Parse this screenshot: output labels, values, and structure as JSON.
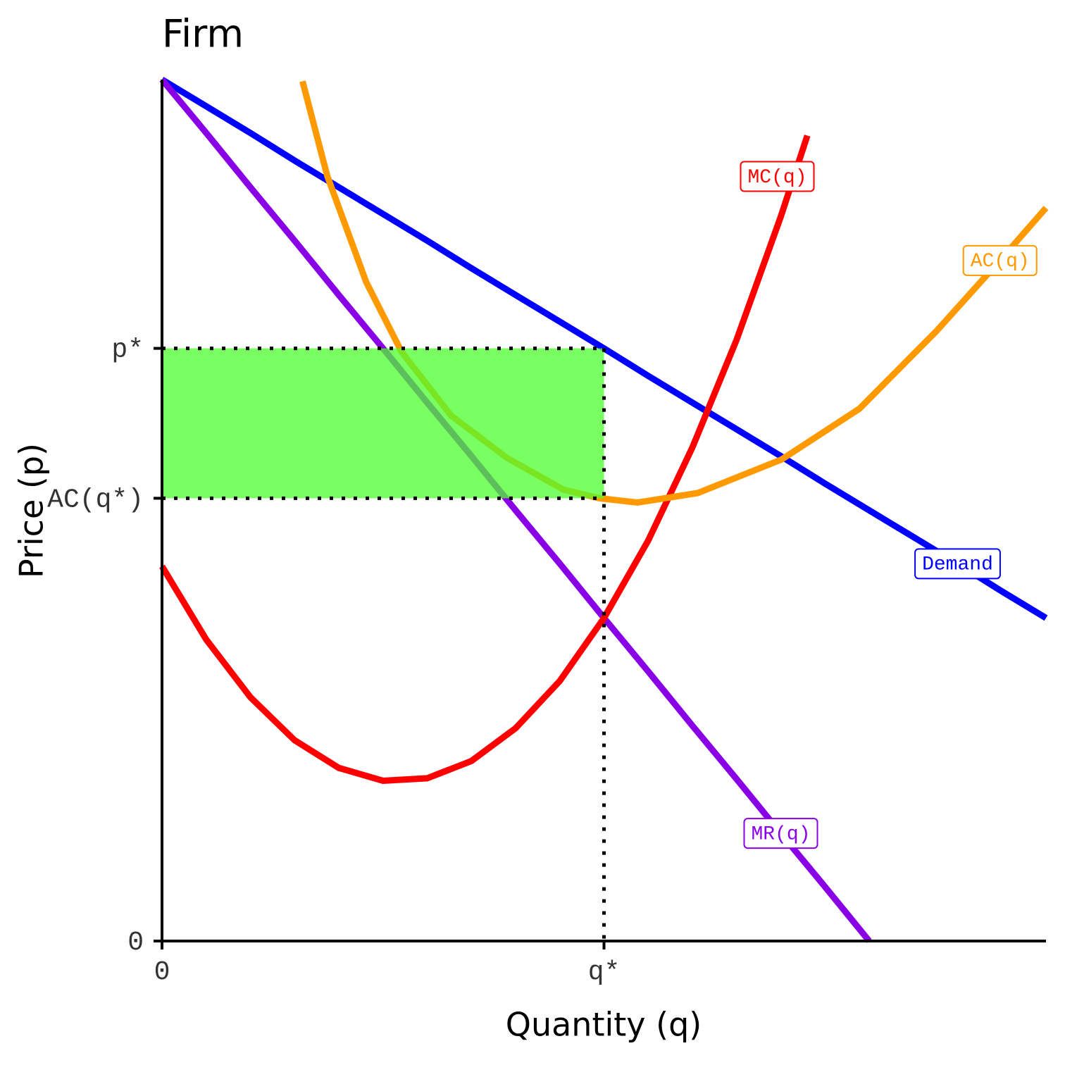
{
  "chart_data": {
    "type": "line",
    "title": "Firm",
    "x_label": "Quantity (q)",
    "y_label": "Price (p)",
    "xlim": [
      0,
      10
    ],
    "ylim": [
      0,
      10
    ],
    "xticks": [
      0,
      {
        "value": 5,
        "label": "q*"
      }
    ],
    "yticks": [
      0,
      {
        "value": 5.14,
        "label": "AC(q*)"
      },
      {
        "value": 6.88,
        "label": "p*"
      }
    ],
    "shade_color": "#4dff2e",
    "series": [
      {
        "name": "Demand",
        "color": "#0000ff",
        "x": [
          0,
          0.5,
          1,
          1.5,
          2,
          2.5,
          3,
          3.5,
          4,
          4.5,
          5,
          5.5,
          6,
          6.5,
          7,
          7.5,
          8,
          8.5,
          9,
          9.5,
          10
        ],
        "values": [
          10,
          9.69,
          9.38,
          9.06,
          8.75,
          8.44,
          8.13,
          7.81,
          7.5,
          7.19,
          6.88,
          6.56,
          6.25,
          5.94,
          5.63,
          5.31,
          5,
          4.69,
          4.38,
          4.06,
          3.75
        ]
      },
      {
        "name": "MR(q)",
        "color": "#8a00e6",
        "x": [
          0,
          0.5,
          1,
          1.5,
          2,
          2.5,
          3,
          3.5,
          4,
          4.5,
          5,
          5.5,
          6,
          6.5,
          7,
          7.5,
          8
        ],
        "values": [
          10,
          9.38,
          8.75,
          8.13,
          7.5,
          6.88,
          6.25,
          5.63,
          5,
          4.38,
          3.75,
          3.13,
          2.5,
          1.88,
          1.25,
          0.63,
          0
        ]
      },
      {
        "name": "MC(q)",
        "color": "#ff0000",
        "x": [
          0,
          0.5,
          1,
          1.5,
          2,
          2.5,
          3,
          3.5,
          4,
          4.5,
          5,
          5.5,
          6,
          6.5,
          7,
          7.3
        ],
        "values": [
          4.35,
          3.5,
          2.83,
          2.33,
          2.01,
          1.86,
          1.89,
          2.09,
          2.47,
          3.02,
          3.75,
          4.65,
          5.73,
          6.98,
          8.41,
          9.35
        ]
      },
      {
        "name": "AC(q)",
        "color": "#ff9900",
        "x": [
          1.59,
          1.87,
          2.31,
          2.71,
          3.27,
          3.9,
          4.54,
          4.95,
          5.38,
          6.06,
          7.01,
          7.89,
          8.76,
          9.48,
          10
        ],
        "values": [
          9.98,
          8.88,
          7.65,
          6.84,
          6.1,
          5.61,
          5.24,
          5.14,
          5.09,
          5.2,
          5.59,
          6.18,
          7.08,
          7.9,
          8.51
        ]
      }
    ]
  }
}
